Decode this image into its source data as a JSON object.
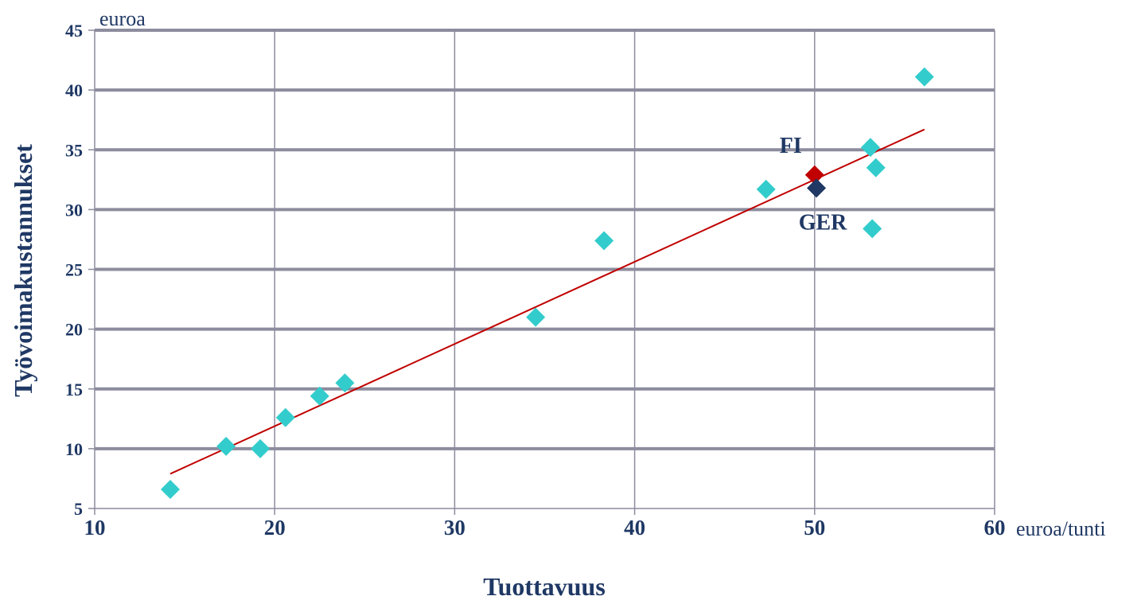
{
  "chart_data": {
    "type": "scatter",
    "title": "",
    "xlabel": "Tuottavuus",
    "ylabel": "Työvoimakustannukset",
    "x_unit": "euroa/tunti",
    "y_unit": "euroa",
    "xlim": [
      10,
      60
    ],
    "ylim": [
      5,
      45
    ],
    "x_ticks": [
      10,
      20,
      30,
      40,
      50,
      60
    ],
    "y_ticks": [
      5,
      10,
      15,
      20,
      25,
      30,
      35,
      40,
      45
    ],
    "grid": true,
    "colors": {
      "points": "#33cccc",
      "highlight_fi": "#c00000",
      "highlight_ger": "#1f3864",
      "trendline": "#c00000",
      "grid": "#8c8c9e",
      "text": "#1f3864"
    },
    "points": [
      {
        "x": 14.2,
        "y": 6.6
      },
      {
        "x": 17.3,
        "y": 10.2
      },
      {
        "x": 19.2,
        "y": 10.0
      },
      {
        "x": 20.6,
        "y": 12.6
      },
      {
        "x": 22.5,
        "y": 14.4
      },
      {
        "x": 23.9,
        "y": 15.5
      },
      {
        "x": 34.5,
        "y": 21.0
      },
      {
        "x": 38.3,
        "y": 27.4
      },
      {
        "x": 47.3,
        "y": 31.7
      },
      {
        "x": 53.1,
        "y": 35.2
      },
      {
        "x": 53.4,
        "y": 33.5
      },
      {
        "x": 53.2,
        "y": 28.4
      },
      {
        "x": 56.1,
        "y": 41.1
      }
    ],
    "highlighted": [
      {
        "label": "FI",
        "x": 50.0,
        "y": 32.9,
        "color": "#c00000"
      },
      {
        "label": "GER",
        "x": 50.1,
        "y": 31.8,
        "color": "#1f3864"
      }
    ],
    "trendline": {
      "x": [
        14.2,
        56.1
      ],
      "y": [
        7.9,
        36.7
      ]
    }
  }
}
